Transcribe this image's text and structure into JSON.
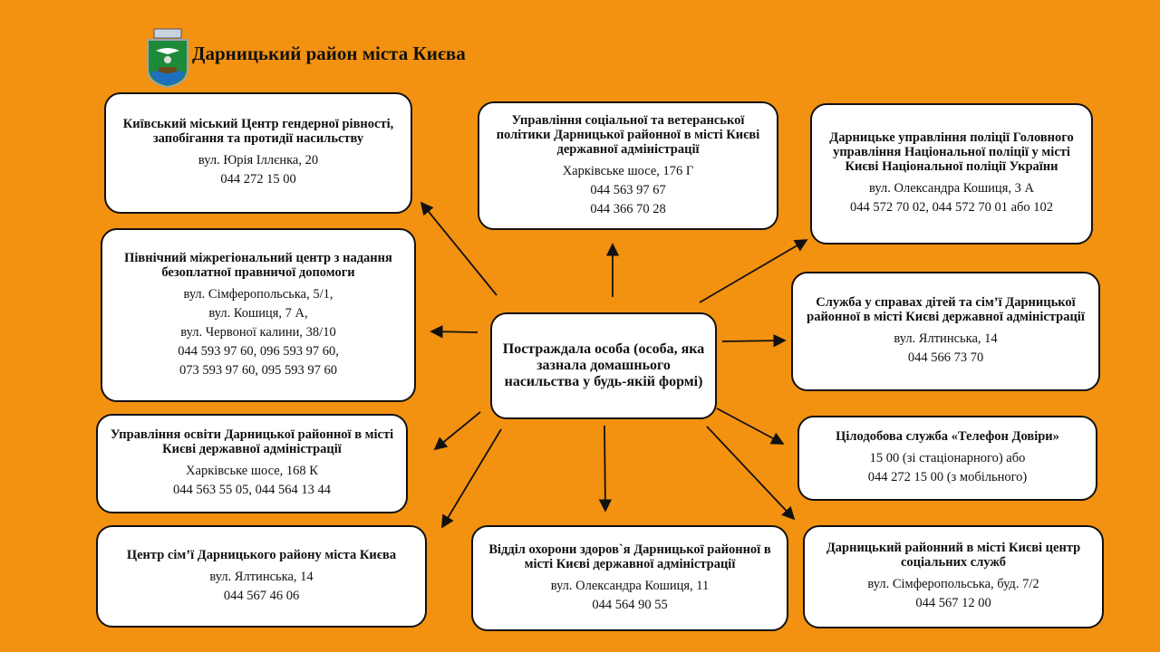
{
  "header": {
    "title": "Дарницький район міста Києва",
    "logo": "Coat of arms of Darnytskyi district"
  },
  "center": {
    "title": "Постраждала особа (особа, яка зазнала домашнього насильства у будь-якій формі)"
  },
  "boxes": [
    {
      "id": "gender",
      "title": "Київський міський Центр гендерної рівності, запобігання та протидії насильству",
      "lines": [
        "вул. Юрія Іллєнка, 20",
        "044 272 15 00"
      ]
    },
    {
      "id": "social",
      "title": "Управління соціальної та ветеранської політики Дарницької районної в місті Києві державної адміністрації",
      "lines": [
        "Харківське шосе, 176 Г",
        "044 563 97 67",
        "044 366 70 28"
      ]
    },
    {
      "id": "police",
      "title": "Дарницьке управління поліції Головного управління Національної поліції у місті Києві Національної поліції України",
      "lines": [
        "вул. Олександра Кошиця, 3 А",
        "044 572 70 02, 044 572 70 01 або 102"
      ]
    },
    {
      "id": "legal",
      "title": "Північний міжрегіональний центр з надання безоплатної правничої допомоги",
      "lines": [
        "вул. Сімферопольська, 5/1,",
        "вул. Кошиця, 7 А,",
        "вул. Червоної калини, 38/10",
        "044 593 97 60, 096 593 97 60,",
        "073 593 97 60, 095 593 97 60"
      ]
    },
    {
      "id": "children",
      "title": "Служба у справах дітей та сім’ї Дарницької районної в місті Києві державної адміністрації",
      "lines": [
        "вул. Ялтинська, 14",
        "044 566 73 70"
      ]
    },
    {
      "id": "education",
      "title": "Управління освіти Дарницької районної в місті Києві державної адміністрації",
      "lines": [
        "Харківське шосе, 168 К",
        "044 563 55 05, 044 564 13 44"
      ]
    },
    {
      "id": "hotline",
      "title": "Цілодобова служба «Телефон Довіри»",
      "lines": [
        "15 00 (зі стаціонарного) або",
        "044 272 15 00 (з мобільного)"
      ]
    },
    {
      "id": "family",
      "title": "Центр сім’ї Дарницького району міста Києва",
      "lines": [
        "вул. Ялтинська, 14",
        "044 567 46 06"
      ]
    },
    {
      "id": "health",
      "title": "Відділ охорони здоров`я Дарницької районної в місті Києві державної адміністрації",
      "lines": [
        "вул. Олександра Кошиця, 11",
        "044 564 90 55"
      ]
    },
    {
      "id": "socialservices",
      "title": "Дарницький районний в місті Києві центр соціальних служб",
      "lines": [
        "вул. Сімферопольська, буд. 7/2",
        "044 567 12 00"
      ]
    }
  ],
  "colors": {
    "background": "#f39110",
    "box": "#ffffff",
    "border": "#111111"
  }
}
